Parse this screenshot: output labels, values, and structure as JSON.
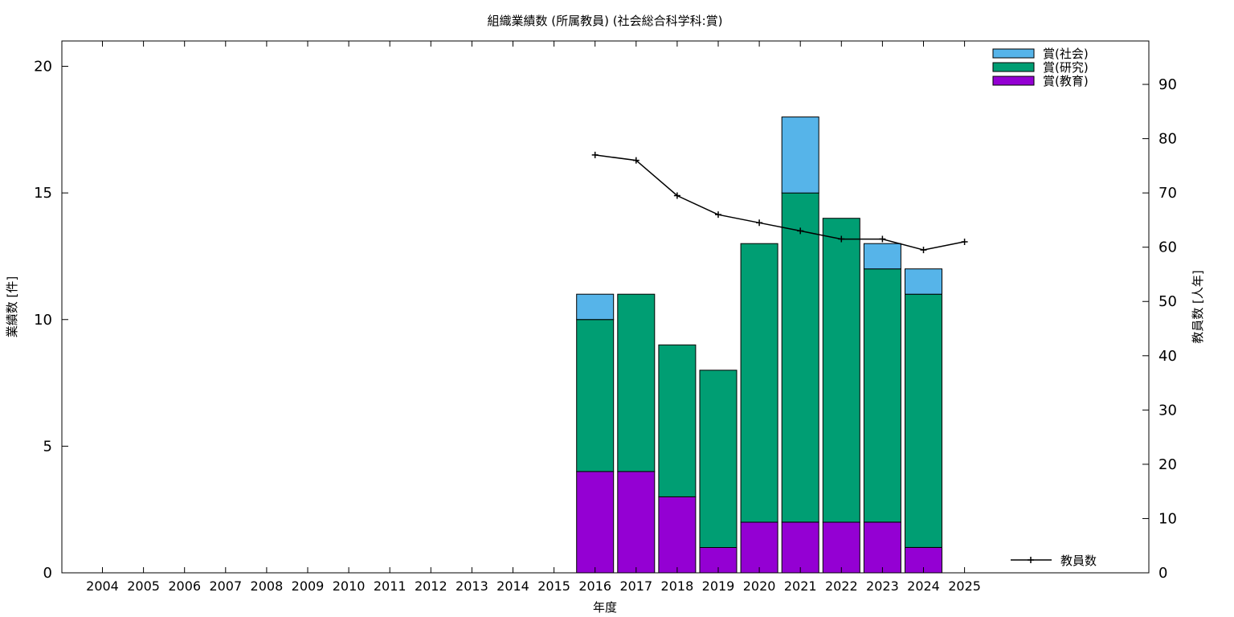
{
  "chart_data": {
    "type": "bar",
    "stacked": true,
    "title": "組織業績数 (所属教員) (社会総合科学科:賞)",
    "xlabel": "年度",
    "ylabel": "業績数 [件]",
    "y2label": "教員数 [人年]",
    "categories": [
      "2004",
      "2005",
      "2006",
      "2007",
      "2008",
      "2009",
      "2010",
      "2011",
      "2012",
      "2013",
      "2014",
      "2015",
      "2016",
      "2017",
      "2018",
      "2019",
      "2020",
      "2021",
      "2022",
      "2023",
      "2024",
      "2025"
    ],
    "ylim": [
      0,
      21
    ],
    "y_ticks": [
      0,
      5,
      10,
      15,
      20
    ],
    "y2lim": [
      0,
      98
    ],
    "y2_ticks": [
      0,
      10,
      20,
      30,
      40,
      50,
      60,
      70,
      80,
      90
    ],
    "grid": false,
    "legend_position": "top-right",
    "series": [
      {
        "name": "賞(教育)",
        "color": "#9400d3",
        "values": [
          0,
          0,
          0,
          0,
          0,
          0,
          0,
          0,
          0,
          0,
          0,
          0,
          4,
          4,
          3,
          1,
          2,
          2,
          2,
          2,
          1,
          0
        ]
      },
      {
        "name": "賞(研究)",
        "color": "#009e73",
        "values": [
          0,
          0,
          0,
          0,
          0,
          0,
          0,
          0,
          0,
          0,
          0,
          0,
          6,
          7,
          6,
          7,
          11,
          13,
          12,
          10,
          10,
          0
        ]
      },
      {
        "name": "賞(社会)",
        "color": "#56b4e9",
        "values": [
          0,
          0,
          0,
          0,
          0,
          0,
          0,
          0,
          0,
          0,
          0,
          0,
          1,
          0,
          0,
          0,
          0,
          3,
          0,
          1,
          1,
          0
        ]
      }
    ],
    "line_series": {
      "name": "教員数",
      "color": "#000000",
      "axis": "y2",
      "legend_position": "bottom-right",
      "x": [
        "2016",
        "2017",
        "2018",
        "2019",
        "2020",
        "2021",
        "2022",
        "2023",
        "2024",
        "2025"
      ],
      "values": [
        77,
        76,
        69.5,
        66,
        64.5,
        63,
        61.5,
        61.5,
        59.5,
        61
      ]
    }
  }
}
